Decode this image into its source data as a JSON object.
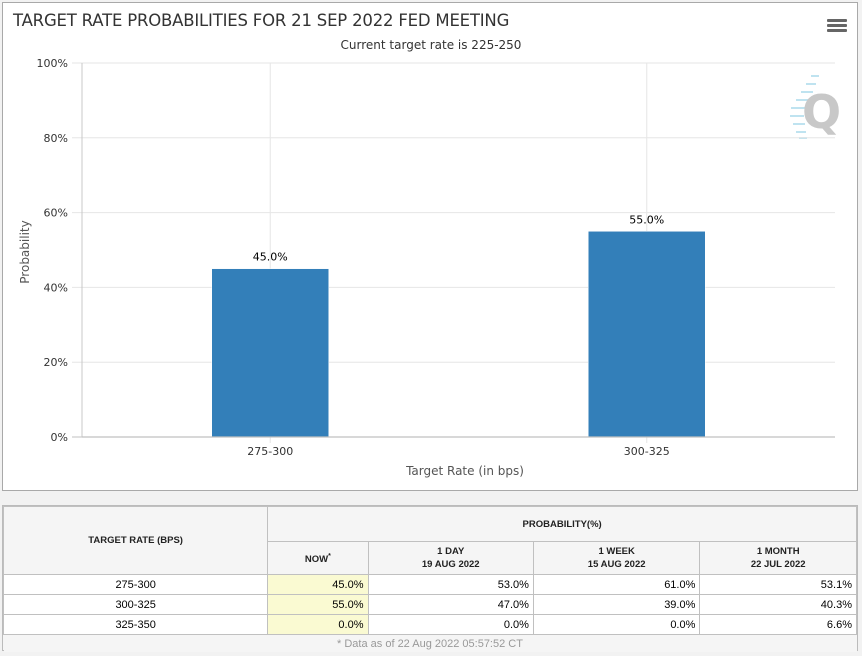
{
  "chart": {
    "title": "TARGET RATE PROBABILITIES FOR 21 SEP 2022 FED MEETING",
    "subtitle": "Current target rate is 225-250",
    "menu_icon": "hamburger-menu-icon",
    "watermark_icon": "quikstrike-q-logo-icon"
  },
  "chart_data": {
    "type": "bar",
    "title": "TARGET RATE PROBABILITIES FOR 21 SEP 2022 FED MEETING",
    "subtitle": "Current target rate is 225-250",
    "categories": [
      "275-300",
      "300-325"
    ],
    "values": [
      45.0,
      55.0
    ],
    "data_labels": [
      "45.0%",
      "55.0%"
    ],
    "xlabel": "Target Rate (in bps)",
    "ylabel": "Probability",
    "ylim": [
      0,
      100
    ],
    "yticks": [
      0,
      20,
      40,
      60,
      80,
      100
    ],
    "ytick_labels": [
      "0%",
      "20%",
      "40%",
      "60%",
      "80%",
      "100%"
    ],
    "grid": true,
    "bar_color": "#337fb9"
  },
  "table": {
    "rate_header": "TARGET RATE (BPS)",
    "prob_header": "PROBABILITY(%)",
    "columns": [
      {
        "line1": "NOW",
        "line2": "",
        "star": "*"
      },
      {
        "line1": "1 DAY",
        "line2": "19 AUG 2022",
        "star": ""
      },
      {
        "line1": "1 WEEK",
        "line2": "15 AUG 2022",
        "star": ""
      },
      {
        "line1": "1 MONTH",
        "line2": "22 JUL 2022",
        "star": ""
      }
    ],
    "rows": [
      {
        "rate": "275-300",
        "values": [
          "45.0%",
          "53.0%",
          "61.0%",
          "53.1%"
        ]
      },
      {
        "rate": "300-325",
        "values": [
          "55.0%",
          "47.0%",
          "39.0%",
          "40.3%"
        ]
      },
      {
        "rate": "325-350",
        "values": [
          "0.0%",
          "0.0%",
          "0.0%",
          "6.6%"
        ]
      }
    ],
    "footnote": "* Data as of 22 Aug 2022 05:57:52 CT",
    "now_highlight_color": "#fafad2"
  }
}
